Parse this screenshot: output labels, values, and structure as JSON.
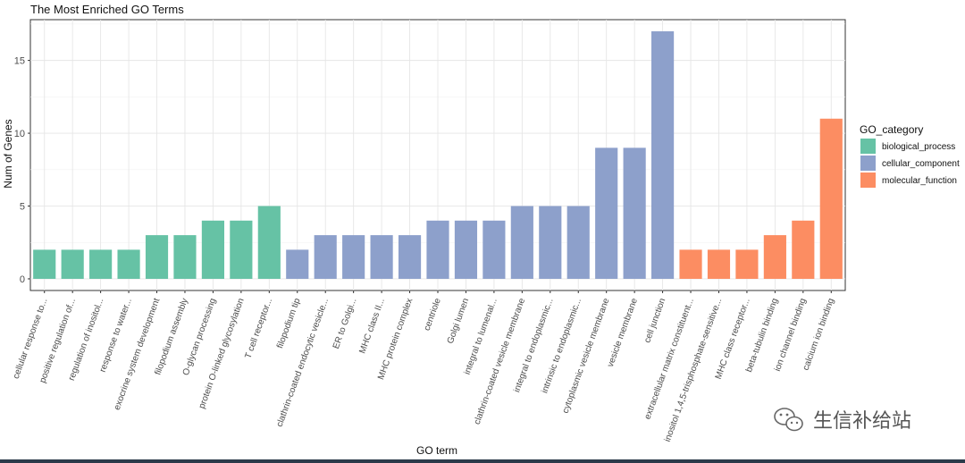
{
  "chart_data": {
    "type": "bar",
    "title": "The Most Enriched GO Terms",
    "xlabel": "GO term",
    "ylabel": "Num of Genes",
    "ylim": [
      -0.8,
      17.8
    ],
    "yticks": [
      0,
      5,
      10,
      15
    ],
    "grid": true,
    "legend_title": "GO_category",
    "legend_position": "right",
    "categories": [
      "cellular response to...",
      "positive regulation of...",
      "regulation of inositol...",
      "response to water...",
      "exocrine system development",
      "filopodium assembly",
      "O-glycan processing",
      "protein O-linked glycosylation",
      "T cell receptor...",
      "filopodium tip",
      "clathrin-coated endocytic vesicle...",
      "ER to Golgi...",
      "MHC class II...",
      "MHC protein complex",
      "centriole",
      "Golgi lumen",
      "integral to lumenal...",
      "clathrin-coated vesicle membrane",
      "integral to endoplasmic...",
      "intrinsic to endoplasmic...",
      "cytoplasmic vesicle membrane",
      "vesicle membrane",
      "cell junction",
      "extracellular matrix constituent...",
      "inositol 1,4,5-trisphosphate-sensitive...",
      "MHC class receptor...",
      "beta-tubulin binding",
      "ion channel binding",
      "calcium ion binding"
    ],
    "values": [
      2,
      2,
      2,
      2,
      3,
      3,
      4,
      4,
      5,
      2,
      3,
      3,
      3,
      3,
      4,
      4,
      4,
      5,
      5,
      5,
      9,
      9,
      17,
      2,
      2,
      2,
      3,
      4,
      11
    ],
    "groups": [
      "biological_process",
      "biological_process",
      "biological_process",
      "biological_process",
      "biological_process",
      "biological_process",
      "biological_process",
      "biological_process",
      "biological_process",
      "cellular_component",
      "cellular_component",
      "cellular_component",
      "cellular_component",
      "cellular_component",
      "cellular_component",
      "cellular_component",
      "cellular_component",
      "cellular_component",
      "cellular_component",
      "cellular_component",
      "cellular_component",
      "cellular_component",
      "cellular_component",
      "molecular_function",
      "molecular_function",
      "molecular_function",
      "molecular_function",
      "molecular_function",
      "molecular_function"
    ],
    "legend": [
      {
        "name": "biological_process",
        "color": "#66c2a5"
      },
      {
        "name": "cellular_component",
        "color": "#8da0cb"
      },
      {
        "name": "molecular_function",
        "color": "#fc8d62"
      }
    ]
  },
  "watermark": {
    "icon": "wechat-icon",
    "text": "生信补给站"
  }
}
